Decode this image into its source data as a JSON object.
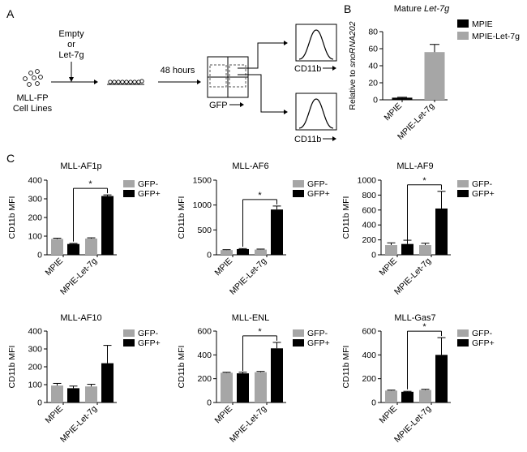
{
  "panel_labels": {
    "a": "A",
    "b": "B",
    "c": "C"
  },
  "schematic": {
    "treatment_line1": "Empty",
    "treatment_line2": "or",
    "treatment_line3": "Let-7g",
    "cells_line1": "MLL-FP",
    "cells_line2": "Cell Lines",
    "time_label": "48 hours",
    "gfp_axis": "GFP",
    "cd11b_axis_top": "CD11b",
    "cd11b_axis_bottom": "CD11b"
  },
  "colors": {
    "gray": "#a6a6a6",
    "black": "#000000"
  },
  "chart_data": [
    {
      "type": "bar",
      "title_prefix": "Mature ",
      "title_italic": "Let-7g",
      "ylabel_prefix": "Relative to ",
      "ylabel_italic": "snoRNA202",
      "categories": [
        "MPIE",
        "MPIE-Let-7g"
      ],
      "values": [
        2.5,
        56
      ],
      "errors": [
        0.5,
        9
      ],
      "legend": [
        "MPIE",
        "MPIE-Let-7g"
      ],
      "ylim": [
        0,
        80
      ],
      "yticks": [
        0,
        20,
        40,
        60,
        80
      ]
    },
    {
      "type": "bar",
      "title": "MLL-AF1p",
      "ylabel": "CD11b MFI",
      "categories": [
        "MPIE",
        "MPIE-Let-7g"
      ],
      "series_labels": [
        "GFP-",
        "GFP+"
      ],
      "values": [
        [
          85,
          58
        ],
        [
          87,
          315
        ]
      ],
      "errors": [
        [
          4,
          3
        ],
        [
          4,
          6
        ]
      ],
      "ylim": [
        0,
        400
      ],
      "yticks": [
        0,
        100,
        200,
        300,
        400
      ],
      "significance": "*"
    },
    {
      "type": "bar",
      "title": "MLL-AF6",
      "ylabel": "CD11b MFI",
      "categories": [
        "MPIE",
        "MPIE-Let-7g"
      ],
      "series_labels": [
        "GFP-",
        "GFP+"
      ],
      "values": [
        [
          95,
          115
        ],
        [
          105,
          910
        ]
      ],
      "errors": [
        [
          8,
          10
        ],
        [
          10,
          70
        ]
      ],
      "ylim": [
        0,
        1500
      ],
      "yticks": [
        0,
        500,
        1000,
        1500
      ],
      "significance": "*"
    },
    {
      "type": "bar",
      "title": "MLL-AF9",
      "ylabel": "CD11b MFI",
      "categories": [
        "MPIE",
        "MPIE-Let-7g"
      ],
      "series_labels": [
        "GFP-",
        "GFP+"
      ],
      "values": [
        [
          130,
          145
        ],
        [
          130,
          620
        ]
      ],
      "errors": [
        [
          30,
          50
        ],
        [
          25,
          230
        ]
      ],
      "ylim": [
        0,
        1000
      ],
      "yticks": [
        0,
        200,
        400,
        600,
        800,
        1000
      ],
      "significance": "*"
    },
    {
      "type": "bar",
      "title": "MLL-AF10",
      "ylabel": "CD11b MFI",
      "categories": [
        "MPIE",
        "MPIE-Let-7g"
      ],
      "series_labels": [
        "GFP-",
        "GFP+"
      ],
      "values": [
        [
          95,
          80
        ],
        [
          90,
          220
        ]
      ],
      "errors": [
        [
          12,
          12
        ],
        [
          12,
          100
        ]
      ],
      "ylim": [
        0,
        400
      ],
      "yticks": [
        0,
        100,
        200,
        300,
        400
      ],
      "significance": ""
    },
    {
      "type": "bar",
      "title": "MLL-ENL",
      "ylabel": "CD11b MFI",
      "categories": [
        "MPIE",
        "MPIE-Let-7g"
      ],
      "series_labels": [
        "GFP-",
        "GFP+"
      ],
      "values": [
        [
          250,
          245
        ],
        [
          255,
          455
        ]
      ],
      "errors": [
        [
          4,
          10
        ],
        [
          6,
          50
        ]
      ],
      "ylim": [
        0,
        600
      ],
      "yticks": [
        0,
        200,
        400,
        600
      ],
      "significance": "*"
    },
    {
      "type": "bar",
      "title": "MLL-Gas7",
      "ylabel": "CD11b MFI",
      "categories": [
        "MPIE",
        "MPIE-Let-7g"
      ],
      "series_labels": [
        "GFP-",
        "GFP+"
      ],
      "values": [
        [
          100,
          90
        ],
        [
          105,
          400
        ]
      ],
      "errors": [
        [
          4,
          4
        ],
        [
          6,
          145
        ]
      ],
      "ylim": [
        0,
        600
      ],
      "yticks": [
        0,
        200,
        400,
        600
      ],
      "significance": "*"
    }
  ]
}
